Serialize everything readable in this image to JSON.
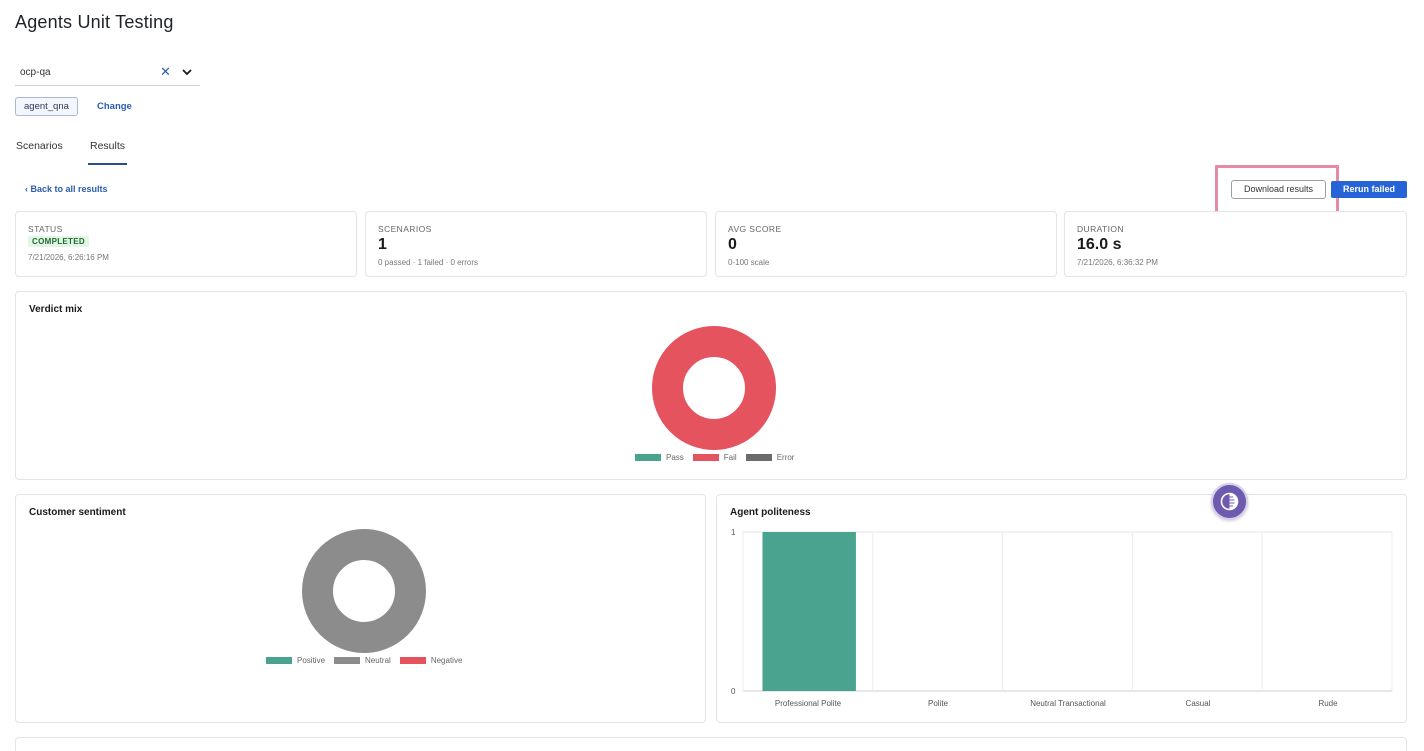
{
  "page": {
    "title": "Agents Unit Testing"
  },
  "selector": {
    "value": "ocp-qa",
    "clear_icon": "close-icon",
    "chevron_icon": "chevron-down-icon"
  },
  "agent": {
    "chip": "agent_qna",
    "change_label": "Change"
  },
  "tabs": [
    {
      "label": "Scenarios",
      "active": false
    },
    {
      "label": "Results",
      "active": true
    }
  ],
  "back_link": "‹ Back to all results",
  "actions": {
    "download": "Download results",
    "rerun": "Rerun failed"
  },
  "stats": {
    "status": {
      "label": "STATUS",
      "badge": "COMPLETED",
      "date": "7/21/2026, 6:26:16 PM"
    },
    "scenarios": {
      "label": "SCENARIOS",
      "value": "1",
      "sub": "0 passed · 1 failed · 0 errors"
    },
    "avg_score": {
      "label": "AVG SCORE",
      "value": "0",
      "sub": "0-100 scale"
    },
    "duration": {
      "label": "DURATION",
      "value": "16.0 s",
      "sub": "7/21/2026, 6:36:32 PM"
    }
  },
  "colors": {
    "pass": "#4aa38e",
    "fail": "#e5535f",
    "error": "#6b6b6b",
    "positive": "#4aa38e",
    "neutral": "#8c8c8c",
    "negative": "#e5535f",
    "accent": "#2563d6"
  },
  "chart_data": [
    {
      "id": "verdict",
      "type": "pie",
      "title": "Verdict mix",
      "categories": [
        "Pass",
        "Fail",
        "Error"
      ],
      "values": [
        0,
        1,
        0
      ],
      "donut": true,
      "legend": "bottom"
    },
    {
      "id": "sentiment",
      "type": "pie",
      "title": "Customer sentiment",
      "categories": [
        "Positive",
        "Neutral",
        "Negative"
      ],
      "values": [
        0,
        1,
        0
      ],
      "donut": true,
      "legend": "bottom"
    },
    {
      "id": "politeness",
      "type": "bar",
      "title": "Agent politeness",
      "categories": [
        "Professional Polite",
        "Polite",
        "Neutral Transactional",
        "Casual",
        "Rude"
      ],
      "values": [
        1,
        0,
        0,
        0,
        0
      ],
      "ylim": [
        0,
        1
      ],
      "yticks": [
        "0",
        "1"
      ],
      "grid": true
    }
  ]
}
